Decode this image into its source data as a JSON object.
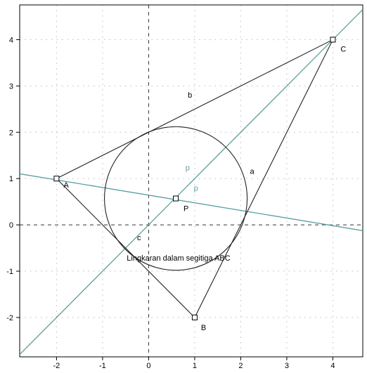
{
  "chart_data": {
    "type": "geometry",
    "title": "",
    "xlim": [
      -2.8,
      4.65
    ],
    "ylim": [
      -2.85,
      4.75
    ],
    "grid": true,
    "x_ticks": [
      -2,
      -1,
      0,
      1,
      2,
      3,
      4
    ],
    "y_ticks": [
      -2,
      -1,
      0,
      1,
      2,
      3,
      4
    ],
    "x_tick_labels": [
      "-2",
      "-1",
      "0",
      "1",
      "2",
      "3",
      "4"
    ],
    "y_tick_labels": [
      "-2",
      "-1",
      "0",
      "1",
      "2",
      "3",
      "4"
    ],
    "points": [
      {
        "id": "A",
        "label": "A",
        "x": -2,
        "y": 1
      },
      {
        "id": "B",
        "label": "B",
        "x": 1,
        "y": -2
      },
      {
        "id": "C",
        "label": "C",
        "x": 4,
        "y": 4
      },
      {
        "id": "P",
        "label": "P",
        "x": 0.59,
        "y": 0.57
      }
    ],
    "segments": [
      {
        "label": "a",
        "from": "B",
        "to": "C",
        "label_at": [
          2.2,
          1.1
        ]
      },
      {
        "label": "b",
        "from": "A",
        "to": "C",
        "label_at": [
          0.85,
          2.75
        ]
      },
      {
        "label": "c",
        "from": "A",
        "to": "B",
        "label_at": [
          -0.25,
          -0.33
        ]
      }
    ],
    "lines": [
      {
        "label": "p",
        "through": [
          [
            -2.8,
            -2.8
          ],
          [
            4.65,
            4.65
          ]
        ],
        "label_at": [
          0.8,
          1.18
        ],
        "color": "#5a9e9e"
      },
      {
        "label": "p",
        "through": [
          [
            -2.8,
            1.103
          ],
          [
            4.65,
            -0.125
          ]
        ],
        "label_at": [
          0.98,
          0.74
        ],
        "color": "#5a9e9e"
      }
    ],
    "circle": {
      "cx": 0.59,
      "cy": 0.57,
      "r": 1.55
    },
    "caption": {
      "text": "Lingkaran dalam segitiga ABC",
      "x": 0.65,
      "y": -0.77
    }
  },
  "colors": {
    "background": "#ffffff",
    "axis": "#000000",
    "grid": "#bbbbbb",
    "line": "#5a9e9e",
    "shape": "#222222"
  }
}
